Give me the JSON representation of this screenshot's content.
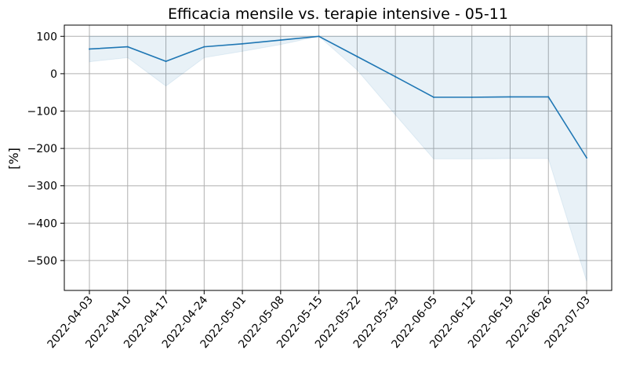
{
  "chart_data": {
    "type": "line",
    "title": "Efficacia mensile vs. terapie intensive - 05-11",
    "xlabel": "",
    "ylabel": "[%]",
    "x": [
      "2022-04-03",
      "2022-04-10",
      "2022-04-17",
      "2022-04-24",
      "2022-05-01",
      "2022-05-08",
      "2022-05-15",
      "2022-05-22",
      "2022-05-29",
      "2022-06-05",
      "2022-06-12",
      "2022-06-19",
      "2022-06-26",
      "2022-07-03"
    ],
    "series": [
      {
        "values": [
          66,
          72,
          33,
          72,
          80,
          90,
          100,
          46,
          -8,
          -63,
          -63,
          -62,
          -62,
          -225
        ],
        "lower": [
          32,
          43,
          -33,
          43,
          60,
          78,
          100,
          10,
          -110,
          -228,
          -228,
          -227,
          -227,
          -555
        ],
        "upper": [
          100,
          100,
          100,
          100,
          100,
          100,
          100,
          100,
          100,
          100,
          100,
          100,
          100,
          100
        ],
        "color": "#1f77b4",
        "band_color": "#1f77b4"
      }
    ],
    "ylim": [
      -580,
      130
    ],
    "yticks": [
      100,
      0,
      -100,
      -200,
      -300,
      -400,
      -500
    ],
    "grid": true
  }
}
